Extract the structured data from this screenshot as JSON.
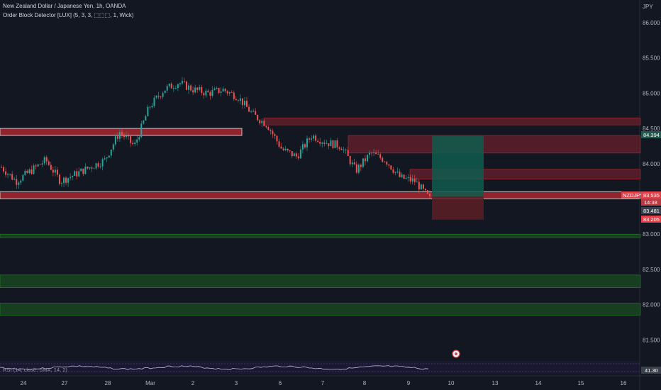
{
  "header": {
    "title": "New Zealand Dollar / Japanese Yen, 1h, OANDA",
    "indicator": "Order Block Detector [LUX] (5, 3, 3, ⬚⬚⬚, 1, Wick)"
  },
  "axis": {
    "currency": "JPY",
    "price_ticks": [
      "86.000",
      "85.500",
      "85.000",
      "84.500",
      "84.000",
      "83.500",
      "83.000",
      "82.500",
      "82.000",
      "81.500"
    ],
    "time_ticks": [
      "24",
      "27",
      "28",
      "Mar",
      "2",
      "3",
      "6",
      "7",
      "8",
      "9",
      "10",
      "13",
      "14",
      "15",
      "16"
    ]
  },
  "price_badges": {
    "upper": "84.394",
    "symbol": "NZDJPY",
    "current": "83.535",
    "countdown": "14:38",
    "mid": "83.481",
    "lower": "83.205"
  },
  "rsi": {
    "label": "RSI (14, close, SMA, 14, 2)",
    "value": "41.30"
  },
  "colors": {
    "background": "#131722",
    "up": "#26a69a",
    "down": "#ef5350",
    "bearish_ob": "#b22833",
    "bullish_ob": "#1f7a1f",
    "profit_zone": "#0f5c4c",
    "loss_zone": "#5c1f26"
  },
  "chart_data": {
    "type": "candlestick",
    "symbol": "NZDJPY",
    "timeframe": "1h",
    "y_unit": "JPY",
    "ylim": [
      81.3,
      86.15
    ],
    "x_categories": [
      "24",
      "27",
      "28",
      "Mar",
      "2",
      "3",
      "6",
      "7",
      "8",
      "9",
      "10",
      "13",
      "14",
      "15",
      "16"
    ],
    "close_path": [
      [
        "24",
        83.95
      ],
      [
        "24",
        83.75
      ],
      [
        "24",
        83.9
      ],
      [
        "27",
        84.05
      ],
      [
        "27",
        83.75
      ],
      [
        "27",
        83.85
      ],
      [
        "28",
        83.95
      ],
      [
        "28",
        84.05
      ],
      [
        "28",
        84.45
      ],
      [
        "Mar",
        84.25
      ],
      [
        "Mar",
        84.8
      ],
      [
        "Mar",
        85.05
      ],
      [
        "2",
        85.15
      ],
      [
        "2",
        85.05
      ],
      [
        "2",
        85.0
      ],
      [
        "3",
        85.05
      ],
      [
        "3",
        84.95
      ],
      [
        "3",
        84.7
      ],
      [
        "6",
        84.55
      ],
      [
        "6",
        84.2
      ],
      [
        "6",
        84.1
      ],
      [
        "7",
        84.4
      ],
      [
        "7",
        84.3
      ],
      [
        "7",
        84.25
      ],
      [
        "8",
        83.9
      ],
      [
        "8",
        84.15
      ],
      [
        "8",
        84.05
      ],
      [
        "9",
        83.8
      ],
      [
        "9",
        83.75
      ],
      [
        "9",
        83.5
      ]
    ],
    "order_blocks": [
      {
        "kind": "bearish",
        "from": 84.55,
        "to": 84.65
      },
      {
        "kind": "bearish",
        "from": 84.4,
        "to": 84.5
      },
      {
        "kind": "bearish",
        "from": 84.15,
        "to": 84.4
      },
      {
        "kind": "bearish",
        "from": 83.78,
        "to": 83.92
      },
      {
        "kind": "bearish",
        "from": 83.5,
        "to": 83.6
      },
      {
        "kind": "bullish",
        "from": 82.95,
        "to": 83.0
      },
      {
        "kind": "bullish",
        "from": 82.24,
        "to": 82.42
      },
      {
        "kind": "bullish",
        "from": 81.85,
        "to": 82.02
      }
    ],
    "position": {
      "entry": 83.535,
      "take_profit": 84.394,
      "stop_loss": 83.205
    },
    "rsi_value": 41.3
  }
}
